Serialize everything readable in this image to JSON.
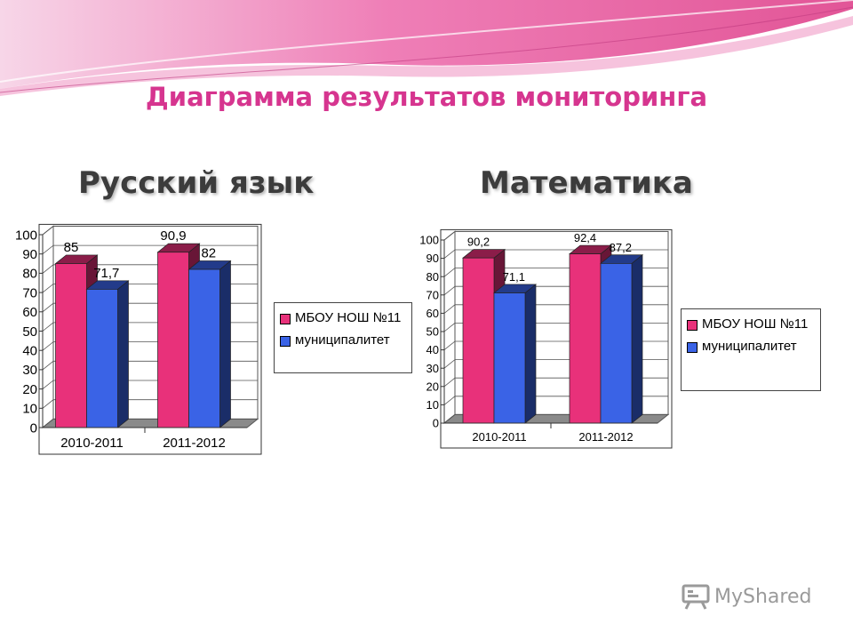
{
  "title": "Диаграмма результатов мониторинга",
  "colors": {
    "series1": "#e8317a",
    "series2": "#3a63e6",
    "title": "#d6358f",
    "wave_pink": "#ee6fae",
    "wave_light": "#f6c1dc"
  },
  "watermark": {
    "text": "MyShared",
    "icon": "presentation-board-icon"
  },
  "chart_data": [
    {
      "type": "bar",
      "title": "Русский язык",
      "categories": [
        "2010-2011",
        "2011-2012"
      ],
      "series": [
        {
          "name": "МБОУ НОШ №11",
          "values": [
            85,
            90.9
          ],
          "labels": [
            "85",
            "90,9"
          ]
        },
        {
          "name": "муниципалитет",
          "values": [
            71.7,
            82
          ],
          "labels": [
            "71,7",
            "82"
          ]
        }
      ],
      "yticks": [
        "0",
        "10",
        "20",
        "30",
        "40",
        "50",
        "60",
        "70",
        "80",
        "90",
        "100"
      ],
      "ylim": [
        0,
        100
      ],
      "grid": true,
      "legend": "right"
    },
    {
      "type": "bar",
      "title": "Математика",
      "categories": [
        "2010-2011",
        "2011-2012"
      ],
      "series": [
        {
          "name": "МБОУ НОШ №11",
          "values": [
            90.2,
            92.4
          ],
          "labels": [
            "90,2",
            "92,4"
          ]
        },
        {
          "name": "муниципалитет",
          "values": [
            71.1,
            87.2
          ],
          "labels": [
            "71,1",
            "87,2"
          ]
        }
      ],
      "yticks": [
        "0",
        "10",
        "20",
        "30",
        "40",
        "50",
        "60",
        "70",
        "80",
        "90",
        "100"
      ],
      "ylim": [
        0,
        100
      ],
      "grid": true,
      "legend": "right"
    }
  ]
}
